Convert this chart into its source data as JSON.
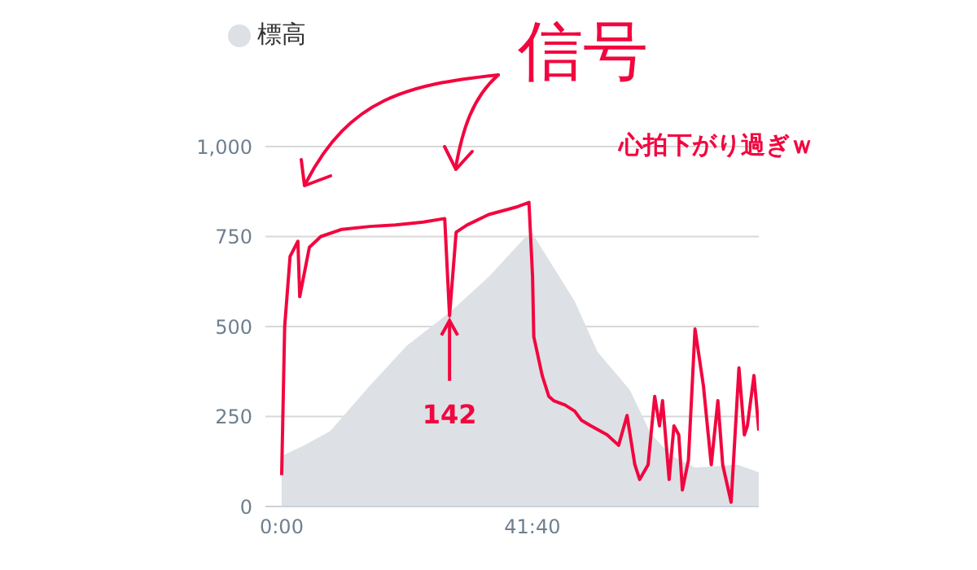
{
  "chart_data": {
    "type": "area",
    "legend": "top left",
    "grid": "y",
    "marker": "none",
    "xlim": [
      -2.7,
      79.3
    ],
    "xticks": [
      {
        "value": 0,
        "label": "0:00"
      },
      {
        "value": 41.667,
        "label": "41:40"
      }
    ],
    "ylim": [
      0,
      1000
    ],
    "yticks": [
      0,
      250,
      500,
      750,
      {
        "value": 1000,
        "label": "1,000"
      }
    ],
    "series": [
      {
        "name": "標高",
        "color": "#dde1e5",
        "x": [
          0,
          3.8,
          8.1,
          14.6,
          20.8,
          28.1,
          34.4,
          40.6,
          41.7,
          48.7,
          52.5,
          57.9,
          61.4,
          64.9,
          68.7,
          75.8,
          79.3
        ],
        "values": [
          140,
          170,
          210,
          335,
          447,
          542,
          638,
          750,
          758,
          570,
          430,
          323,
          200,
          140,
          108,
          116,
          95
        ]
      },
      {
        "type": "line",
        "color": "#f2063f",
        "x": [
          0,
          0.5,
          1.4,
          2.7,
          3.0,
          4.6,
          6.5,
          10.0,
          14.6,
          18.9,
          23.5,
          27.1,
          27.9,
          29.0,
          30.8,
          34.4,
          39.0,
          41.1,
          41.7,
          41.9,
          43.3,
          44.4,
          45.2,
          47.1,
          48.7,
          49.8,
          51.4,
          54.1,
          56.0,
          57.4,
          58.7,
          59.5,
          60.9,
          62.0,
          62.8,
          63.3,
          64.4,
          65.2,
          66.0,
          66.6,
          67.6,
          68.7,
          70.1,
          70.9,
          71.4,
          72.5,
          73.3,
          74.7,
          76.0,
          76.9,
          77.4,
          78.5,
          79.3
        ],
        "values": [
          87,
          500,
          695,
          737,
          583,
          720,
          750,
          770,
          778,
          782,
          790,
          800,
          530,
          762,
          782,
          811,
          832,
          845,
          638,
          472,
          364,
          306,
          294,
          282,
          265,
          240,
          224,
          199,
          170,
          253,
          116,
          75,
          116,
          306,
          224,
          294,
          75,
          224,
          199,
          46,
          128,
          493,
          335,
          199,
          116,
          294,
          116,
          12,
          385,
          199,
          224,
          364,
          211
        ]
      }
    ],
    "annotations": [
      "信号",
      {
        "text": "142",
        "x": 27.9,
        "y": 530
      },
      "心拍下がり過ぎｗ"
    ]
  }
}
